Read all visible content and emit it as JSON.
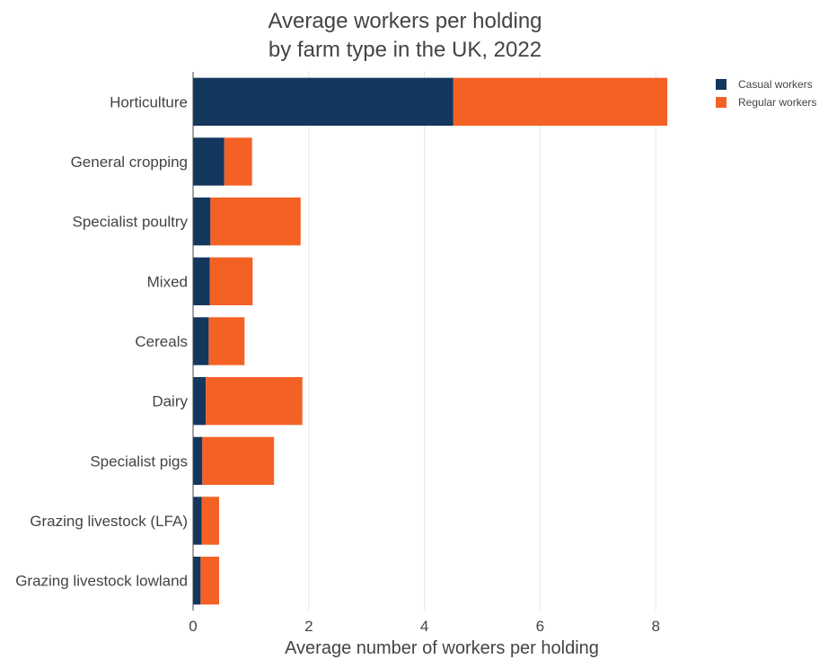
{
  "chart_data": {
    "type": "bar",
    "orientation": "horizontal",
    "stacked": true,
    "title_line1": "Average workers per holding",
    "title_line2": "by farm type in the UK, 2022",
    "xlabel": "Average number of workers per holding",
    "ylabel": "",
    "xlim": [
      0,
      8.6
    ],
    "xticks": [
      "0",
      "2",
      "4",
      "6",
      "8"
    ],
    "grid": "vertical",
    "legend_position": "top-right",
    "categories": [
      "Horticulture",
      "General cropping",
      "Specialist poultry",
      "Mixed",
      "Cereals",
      "Dairy",
      "Specialist pigs",
      "Grazing livestock (LFA)",
      "Grazing livestock lowland"
    ],
    "series": [
      {
        "name": "Casual workers",
        "color": "#14375e",
        "values": [
          4.5,
          0.54,
          0.3,
          0.29,
          0.27,
          0.22,
          0.16,
          0.15,
          0.13
        ]
      },
      {
        "name": "Regular workers",
        "color": "#f46125",
        "values": [
          3.7,
          0.48,
          1.56,
          0.74,
          0.62,
          1.67,
          1.24,
          0.3,
          0.32
        ]
      }
    ]
  }
}
